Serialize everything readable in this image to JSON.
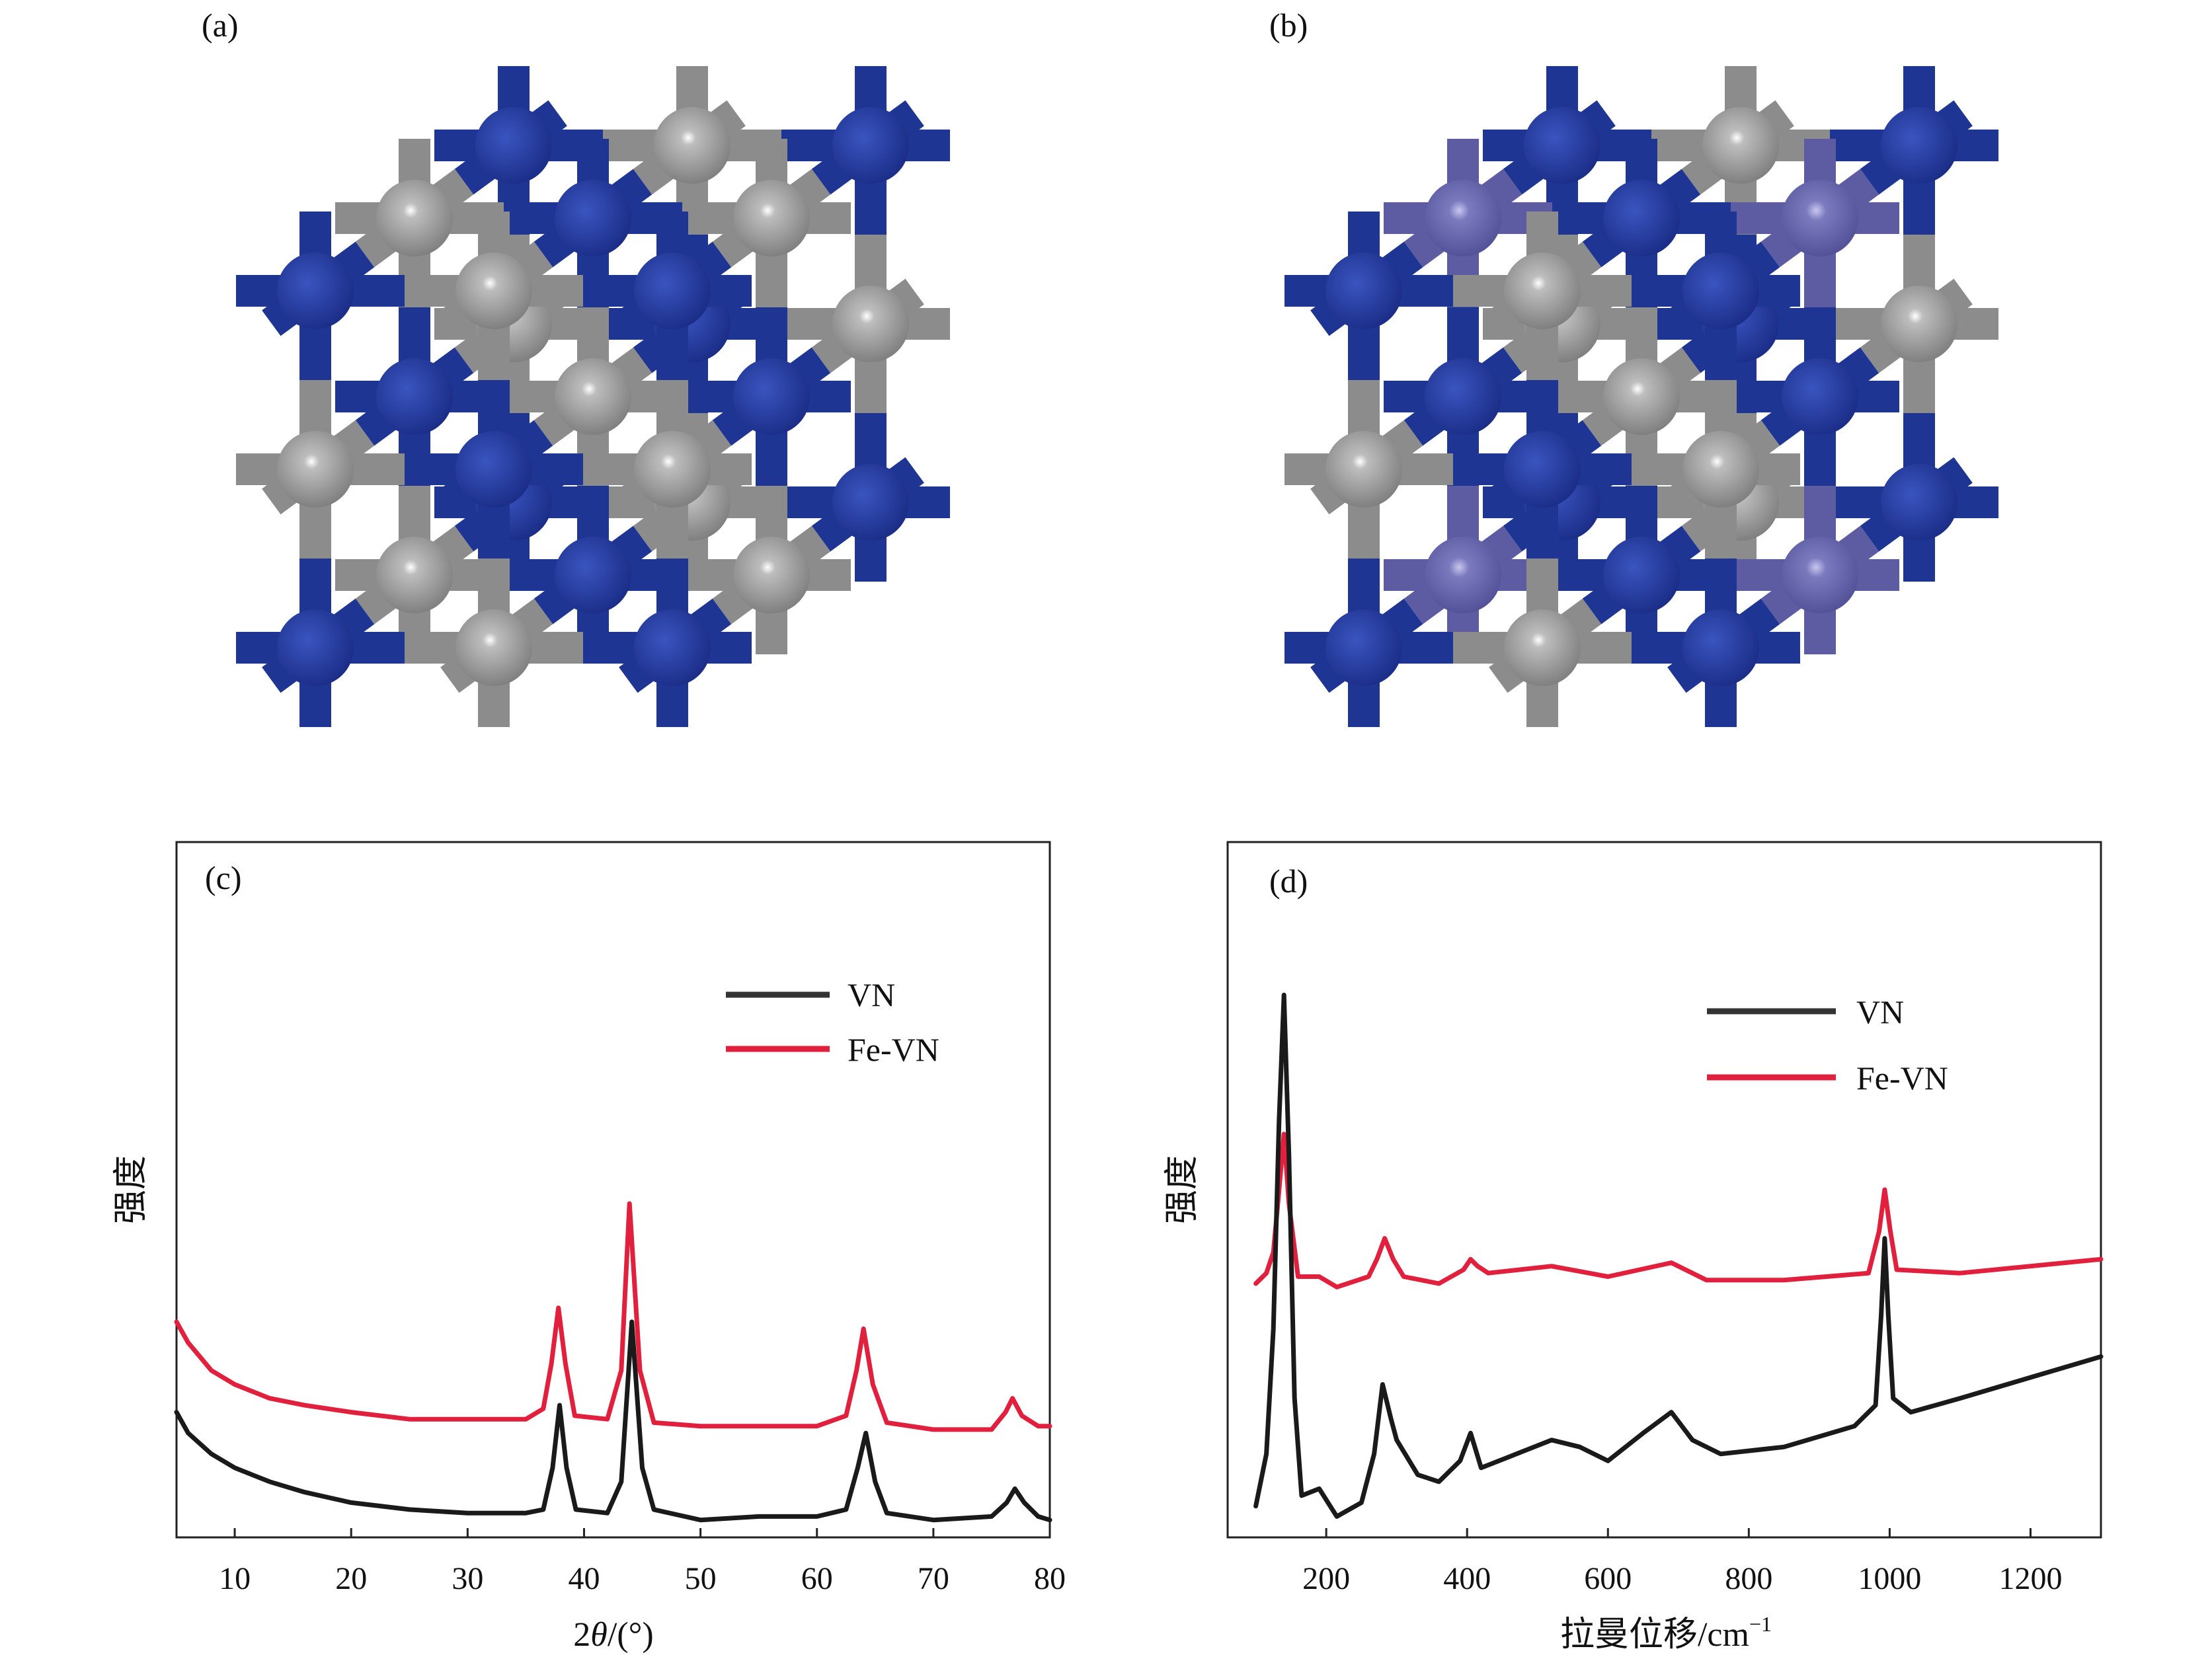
{
  "panels": {
    "a_label": "(a)",
    "b_label": "(b)",
    "c_label": "(c)",
    "d_label": "(d)"
  },
  "structure_colors": {
    "nitrogen_blue": "#1f3593",
    "vanadium_gray": "#8c8c8c",
    "iron_purple": "#5d5ca3"
  },
  "chart_data": [
    {
      "type": "line",
      "panel": "(c)",
      "xlabel_prefix": "2",
      "xlabel_symbol": "θ",
      "xlabel_suffix": "/(°)",
      "ylabel": "强度",
      "xlim": [
        5,
        80
      ],
      "ylim": [
        0,
        100
      ],
      "xticks": [
        "10",
        "20",
        "30",
        "40",
        "50",
        "60",
        "70",
        "80"
      ],
      "grid": false,
      "legend_position": "top-right",
      "series": [
        {
          "name": "VN",
          "color": "#1a1a1a",
          "x": [
            5,
            6,
            8,
            10,
            13,
            16,
            20,
            25,
            30,
            35,
            36.5,
            37.3,
            37.9,
            38.5,
            39.3,
            42,
            43.2,
            44.1,
            45,
            46,
            50,
            55,
            60,
            62.5,
            63.5,
            64.2,
            65,
            66,
            70,
            75,
            76.3,
            77,
            77.8,
            79,
            80
          ],
          "y": [
            18,
            15,
            12,
            10,
            8,
            6.5,
            5,
            4,
            3.5,
            3.5,
            4,
            10,
            19,
            10,
            4,
            3.5,
            8,
            31,
            10,
            4,
            2.5,
            3,
            3,
            4,
            10,
            15,
            8,
            3.5,
            2.5,
            3,
            5,
            7,
            5,
            3,
            2.5
          ]
        },
        {
          "name": "Fe-VN",
          "color": "#e0203c",
          "x": [
            5,
            6,
            8,
            10,
            13,
            16,
            20,
            25,
            30,
            35,
            36.5,
            37.2,
            37.8,
            38.4,
            39.2,
            42,
            43.2,
            43.9,
            44.8,
            46,
            50,
            55,
            60,
            62.5,
            63.4,
            64,
            64.8,
            66,
            70,
            75,
            76.2,
            76.8,
            77.6,
            79,
            80
          ],
          "y": [
            31,
            28,
            24,
            22,
            20,
            19,
            18,
            17,
            17,
            17,
            18.5,
            25,
            33,
            25,
            17.5,
            17,
            24,
            48,
            24,
            16.5,
            16,
            16,
            16,
            17.5,
            24,
            30,
            22,
            16.5,
            15.5,
            15.5,
            18,
            20,
            17.5,
            16,
            16
          ]
        }
      ]
    },
    {
      "type": "line",
      "panel": "(d)",
      "xlabel": "拉曼位移/cm",
      "xlabel_sup": "−1",
      "ylabel": "强度",
      "xlim": [
        60,
        1300
      ],
      "ylim": [
        0,
        100
      ],
      "xticks": [
        "200",
        "400",
        "600",
        "800",
        "1000",
        "1200"
      ],
      "grid": false,
      "legend_position": "top-right",
      "series": [
        {
          "name": "VN",
          "color": "#1a1a1a",
          "x": [
            100,
            115,
            125,
            133,
            140,
            147,
            155,
            165,
            190,
            215,
            250,
            268,
            280,
            292,
            300,
            330,
            360,
            390,
            405,
            420,
            470,
            520,
            560,
            600,
            650,
            690,
            720,
            760,
            850,
            950,
            980,
            988,
            993,
            998,
            1005,
            1030,
            1100,
            1200,
            1300
          ],
          "y": [
            4.5,
            12,
            30,
            60,
            78,
            55,
            20,
            6,
            7,
            3,
            5,
            12,
            22,
            17,
            14,
            9,
            8,
            11,
            15,
            10,
            12,
            14,
            13,
            11,
            15,
            18,
            14,
            12,
            13,
            16,
            19,
            32,
            43,
            32,
            20,
            18,
            20,
            23,
            26
          ]
        },
        {
          "name": "Fe-VN",
          "color": "#e0203c",
          "x": [
            100,
            115,
            125,
            133,
            140,
            147,
            160,
            190,
            215,
            260,
            272,
            283,
            295,
            310,
            360,
            395,
            405,
            415,
            430,
            520,
            600,
            690,
            740,
            850,
            970,
            985,
            993,
            1001,
            1010,
            1100,
            1300
          ],
          "y": [
            36.5,
            38,
            41,
            50,
            58,
            48,
            37.5,
            37.5,
            36,
            37.5,
            40,
            43,
            40,
            37.5,
            36.5,
            38.5,
            40,
            39,
            38,
            39,
            37.5,
            39.5,
            37,
            37,
            38,
            44,
            50,
            44,
            38.5,
            38,
            40
          ]
        }
      ]
    }
  ]
}
